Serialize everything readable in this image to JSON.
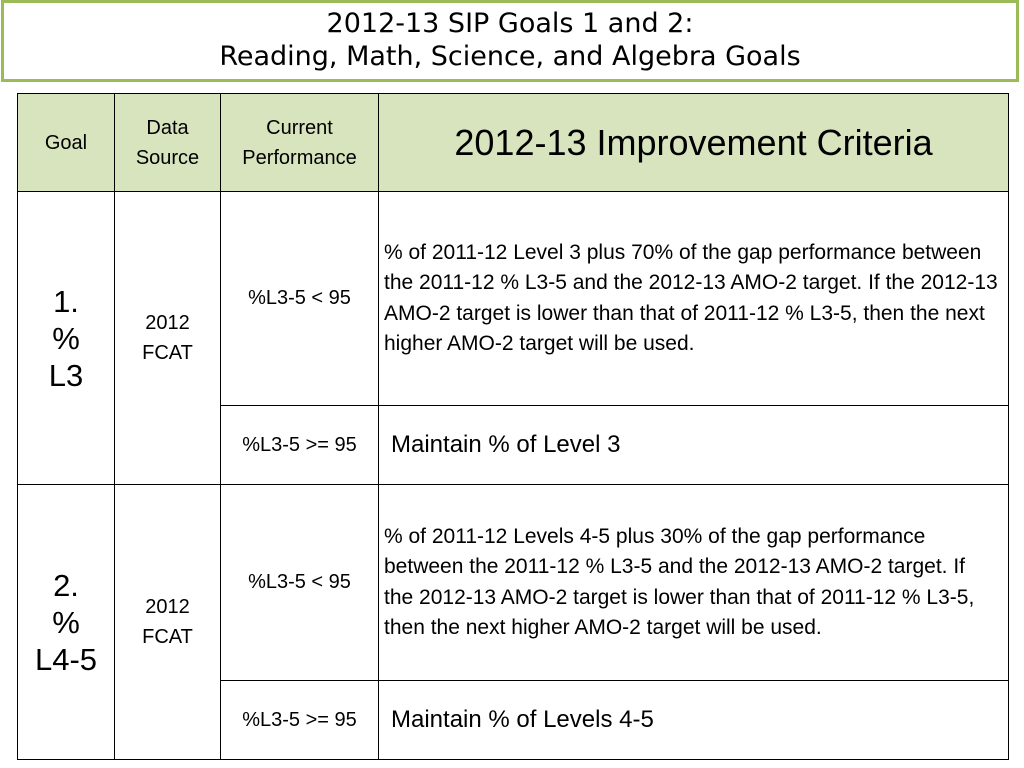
{
  "title": {
    "line1": "2012-13 SIP Goals 1 and 2:",
    "line2": "Reading, Math, Science, and Algebra Goals"
  },
  "table": {
    "headers": {
      "goal": "Goal",
      "data_source_1": "Data",
      "data_source_2": "Source",
      "current_performance_1": "Current",
      "current_performance_2": "Performance",
      "criteria": "2012-13 Improvement Criteria"
    },
    "rows": [
      {
        "goal_num": "1.",
        "goal_pct": "%",
        "goal_level": "L3",
        "source_1": "2012",
        "source_2": "FCAT",
        "perf_a": "%L3-5 < 95",
        "criteria_a": "% of 2011-12 Level 3 plus 70% of the gap performance between the 2011-12 % L3-5 and the 2012-13 AMO-2 target. If the 2012-13 AMO-2 target is lower than that of 2011-12 % L3-5, then the next higher AMO-2 target will be used.",
        "perf_b": "%L3-5 >= 95",
        "criteria_b": "Maintain % of Level 3"
      },
      {
        "goal_num": "2.",
        "goal_pct": "%",
        "goal_level": "L4-5",
        "source_1": "2012",
        "source_2": "FCAT",
        "perf_a": "%L3-5 < 95",
        "criteria_a": "% of 2011-12 Levels 4-5  plus 30% of the gap performance between the 2011-12 % L3-5 and the 2012-13 AMO-2 target. If the 2012-13 AMO-2 target is lower than that of 2011-12 % L3-5, then the next higher AMO-2 target will be used.",
        "perf_b": "%L3-5 >= 95",
        "criteria_b": "Maintain % of Levels 4-5"
      }
    ]
  }
}
